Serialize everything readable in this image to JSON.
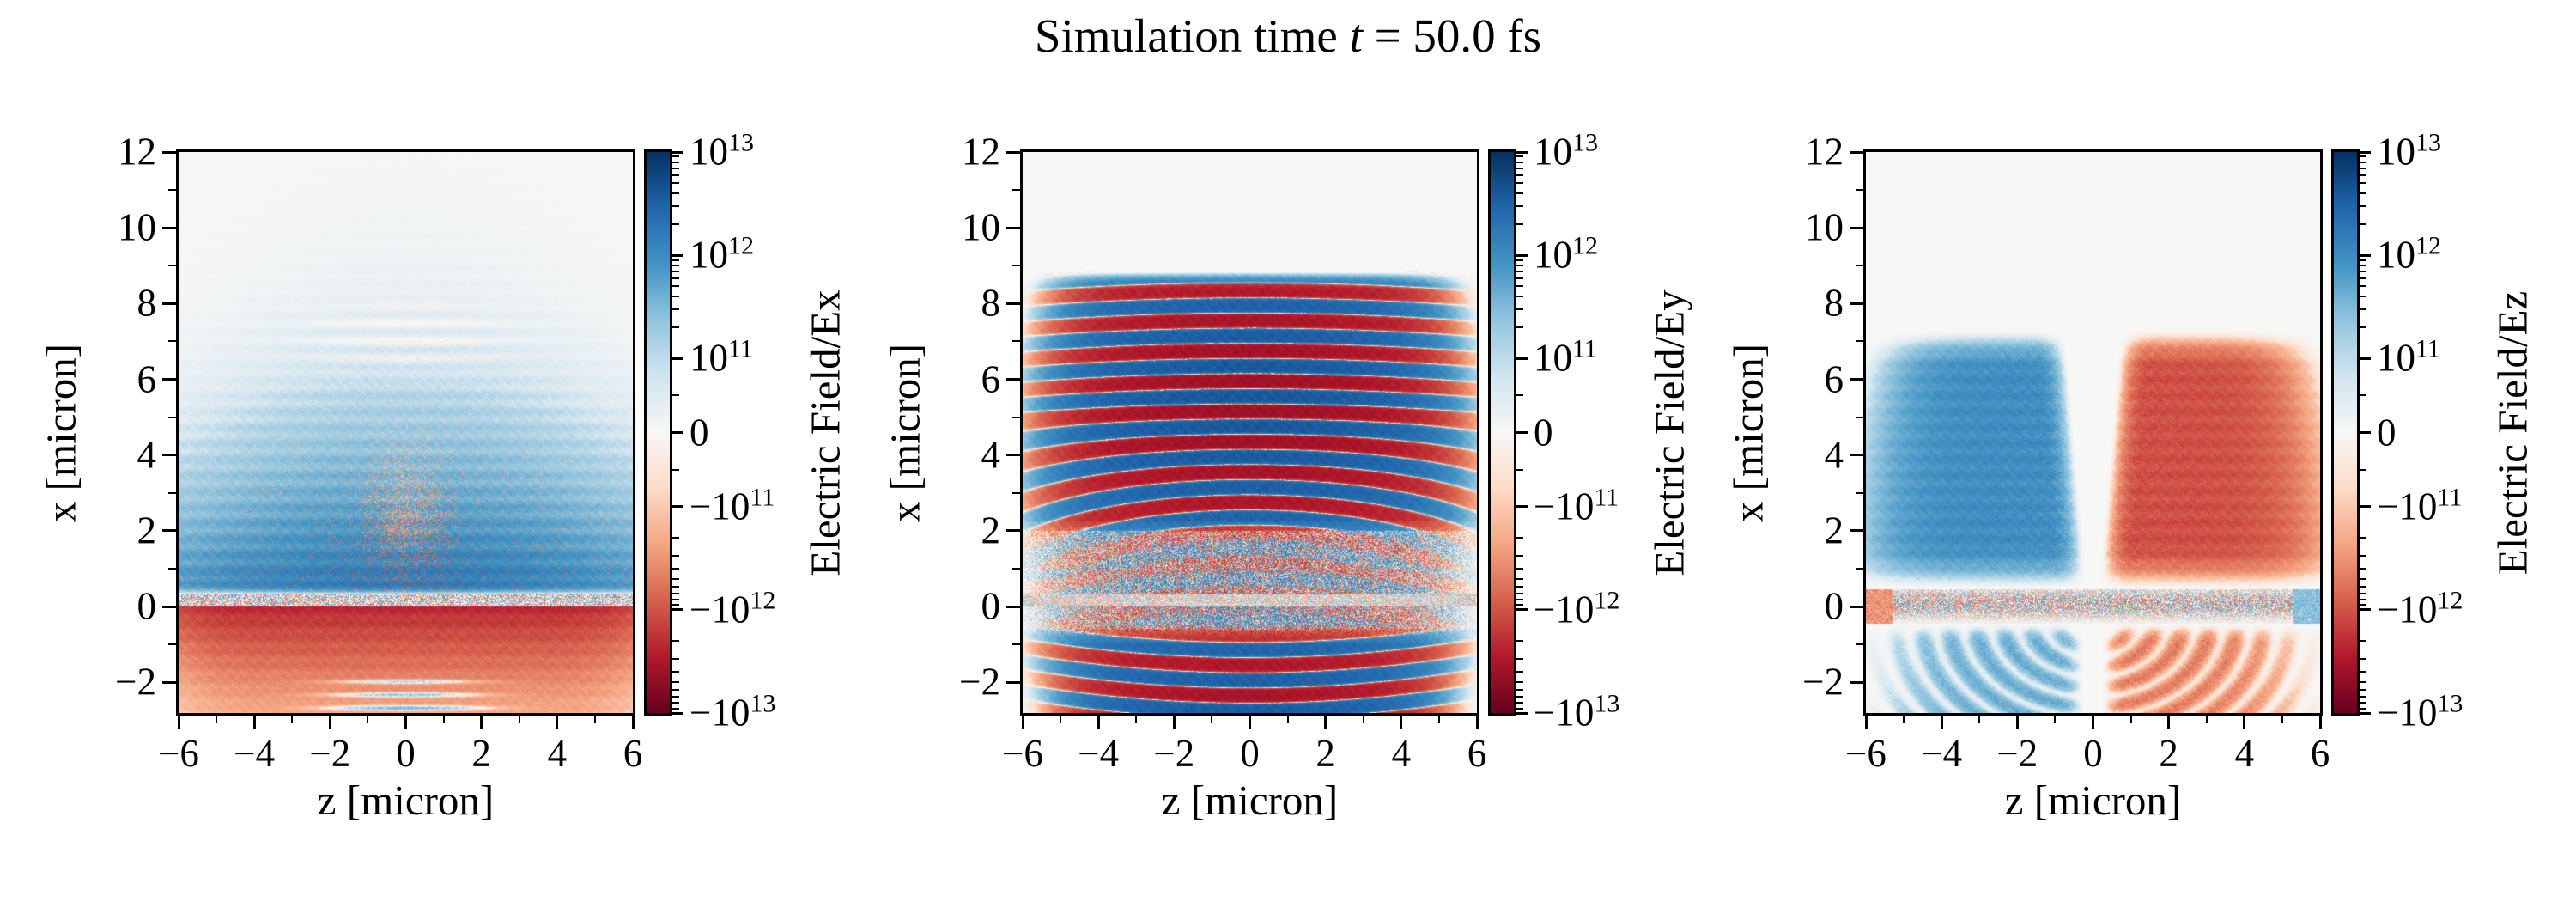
{
  "figure": {
    "title_parts": {
      "prefix": "Simulation time ",
      "variable": "t",
      "suffix": " = 50.0 fs"
    },
    "background": "#ffffff"
  },
  "simulation": {
    "time_fs": 50.0
  },
  "colormap": {
    "name": "RdBu (red = negative, white = zero, blue = positive)",
    "stops": [
      "#67001f",
      "#b2182b",
      "#d6604d",
      "#f4a582",
      "#fddbc7",
      "#f7f7f6",
      "#d1e5f0",
      "#92c5de",
      "#4393c3",
      "#2166ac",
      "#053061"
    ]
  },
  "chart_data": [
    {
      "type": "heatmap",
      "field": "Ex",
      "colorbar_label": "Electric Field/Ex",
      "xlabel": "z [micron]",
      "ylabel": "x [micron]",
      "xlim": [
        -6,
        6
      ],
      "ylim": [
        -2.81,
        12
      ],
      "x_tick_values": [
        -6,
        -4,
        -2,
        0,
        2,
        4,
        6
      ],
      "x_tick_labels": [
        "−6",
        "−4",
        "−2",
        "0",
        "2",
        "4",
        "6"
      ],
      "x_minor_tick_values": [
        -5,
        -3,
        -1,
        1,
        3,
        5
      ],
      "y_tick_values": [
        12,
        10,
        8,
        6,
        4,
        2,
        0,
        -2
      ],
      "y_tick_labels": [
        "12",
        "10",
        "8",
        "6",
        "4",
        "2",
        "0",
        "−2"
      ],
      "y_minor_tick_values": [
        11,
        9,
        7,
        5,
        3,
        1,
        -1
      ],
      "colorbar": {
        "scale": "symlog",
        "vmin": -10000000000000.0,
        "vmax": 10000000000000.0,
        "linthresh": 100000000000.0,
        "tick_values": [
          10000000000000.0,
          1000000000000.0,
          100000000000.0,
          0,
          -100000000000.0,
          -1000000000000.0,
          -10000000000000.0
        ],
        "tick_labels": [
          {
            "sign": "",
            "mantissa": "10",
            "exponent": "13"
          },
          {
            "sign": "",
            "mantissa": "10",
            "exponent": "12"
          },
          {
            "sign": "",
            "mantissa": "10",
            "exponent": "11"
          },
          {
            "sign": "",
            "mantissa": "0",
            "exponent": ""
          },
          {
            "sign": "−",
            "mantissa": "10",
            "exponent": "11"
          },
          {
            "sign": "−",
            "mantissa": "10",
            "exponent": "12"
          },
          {
            "sign": "−",
            "mantissa": "10",
            "exponent": "13"
          }
        ]
      },
      "description": "Transverse field Ex: broad positive (blue) dome above the surface for 0 < x < 7 micron peaking near x=1-2 at ~1e12-2e12, fading to ~0 above x=8; speckled noise band at 0 < x < 0.3; strong negative (red) sheet below x=0 down to -2.8 micron, darkest (~-2e12) just below the surface, with thin light streaks near x=-2 to -2.7 at |z|<2 and faint orange arcs near x=6.5-7.5, |z|<2."
    },
    {
      "type": "heatmap",
      "field": "Ey",
      "colorbar_label": "Electric Field/Ey",
      "xlabel": "z [micron]",
      "ylabel": "x [micron]",
      "xlim": [
        -6,
        6
      ],
      "ylim": [
        -2.81,
        12
      ],
      "x_tick_values": [
        -6,
        -4,
        -2,
        0,
        2,
        4,
        6
      ],
      "x_tick_labels": [
        "−6",
        "−4",
        "−2",
        "0",
        "2",
        "4",
        "6"
      ],
      "x_minor_tick_values": [
        -5,
        -3,
        -1,
        1,
        3,
        5
      ],
      "y_tick_values": [
        12,
        10,
        8,
        6,
        4,
        2,
        0,
        -2
      ],
      "y_tick_labels": [
        "12",
        "10",
        "8",
        "6",
        "4",
        "2",
        "0",
        "−2"
      ],
      "y_minor_tick_values": [
        11,
        9,
        7,
        5,
        3,
        1,
        -1
      ],
      "colorbar": {
        "scale": "symlog",
        "vmin": -10000000000000.0,
        "vmax": 10000000000000.0,
        "linthresh": 100000000000.0,
        "tick_values": [
          10000000000000.0,
          1000000000000.0,
          100000000000.0,
          0,
          -100000000000.0,
          -1000000000000.0,
          -10000000000000.0
        ],
        "tick_labels": [
          {
            "sign": "",
            "mantissa": "10",
            "exponent": "13"
          },
          {
            "sign": "",
            "mantissa": "10",
            "exponent": "12"
          },
          {
            "sign": "",
            "mantissa": "10",
            "exponent": "11"
          },
          {
            "sign": "",
            "mantissa": "0",
            "exponent": ""
          },
          {
            "sign": "−",
            "mantissa": "10",
            "exponent": "11"
          },
          {
            "sign": "−",
            "mantissa": "10",
            "exponent": "12"
          },
          {
            "sign": "−",
            "mantissa": "10",
            "exponent": "13"
          }
        ]
      },
      "description": "Laser field Ey: horizontal alternating blue/red stripes of wavelength ~0.8 micron (amplitude ~3e12-5e12) from x=8.6 down to the bottom edge at -2.8; stripes sag at |z|>2.5 for 2<x<5, become speckled and weak between x=-0.5 and 2 (noise strip at x~0-0.3), and fade toward |z|=6; grey (near-zero) above x=8.8."
    },
    {
      "type": "heatmap",
      "field": "Ez",
      "colorbar_label": "Electric Field/Ez",
      "xlabel": "z [micron]",
      "ylabel": "x [micron]",
      "xlim": [
        -6,
        6
      ],
      "ylim": [
        -2.81,
        12
      ],
      "x_tick_values": [
        -6,
        -4,
        -2,
        0,
        2,
        4,
        6
      ],
      "x_tick_labels": [
        "−6",
        "−4",
        "−2",
        "0",
        "2",
        "4",
        "6"
      ],
      "x_minor_tick_values": [
        -5,
        -3,
        -1,
        1,
        3,
        5
      ],
      "y_tick_values": [
        12,
        10,
        8,
        6,
        4,
        2,
        0,
        -2
      ],
      "y_tick_labels": [
        "12",
        "10",
        "8",
        "6",
        "4",
        "2",
        "0",
        "−2"
      ],
      "y_minor_tick_values": [
        11,
        9,
        7,
        5,
        3,
        1,
        -1
      ],
      "colorbar": {
        "scale": "symlog",
        "vmin": -10000000000000.0,
        "vmax": 10000000000000.0,
        "linthresh": 100000000000.0,
        "tick_values": [
          10000000000000.0,
          1000000000000.0,
          100000000000.0,
          0,
          -100000000000.0,
          -1000000000000.0,
          -10000000000000.0
        ],
        "tick_labels": [
          {
            "sign": "",
            "mantissa": "10",
            "exponent": "13"
          },
          {
            "sign": "",
            "mantissa": "10",
            "exponent": "12"
          },
          {
            "sign": "",
            "mantissa": "10",
            "exponent": "11"
          },
          {
            "sign": "",
            "mantissa": "0",
            "exponent": ""
          },
          {
            "sign": "−",
            "mantissa": "10",
            "exponent": "11"
          },
          {
            "sign": "−",
            "mantissa": "10",
            "exponent": "12"
          },
          {
            "sign": "−",
            "mantissa": "10",
            "exponent": "13"
          }
        ]
      },
      "description": "Longitudinal field Ez: dipole pattern above the surface — positive (blue) lobe for z<0 and negative (red) lobe for z>0 (~1e12), both spanning x=0.5-7 micron with a white seam at z=0 widening upward; dense speckle band at |x|<0.4 with an orange patch at the far-left edge and a blue patch at the far-right edge; weaker rippled blue/red arcs below x=-0.5 down to -2.8."
    }
  ]
}
